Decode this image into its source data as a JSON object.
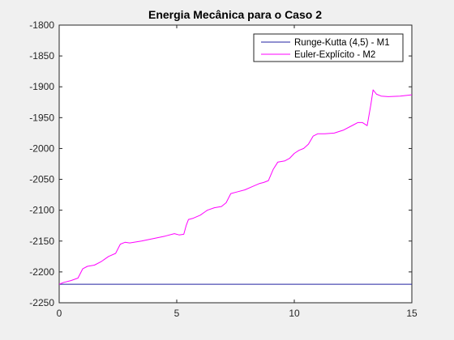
{
  "chart_data": {
    "type": "line",
    "title": "Energia Mecânica para o Caso 2",
    "xlabel": "",
    "ylabel": "",
    "xlim": [
      0,
      15
    ],
    "ylim": [
      -2250,
      -1800
    ],
    "xticks": [
      "0",
      "5",
      "10",
      "15"
    ],
    "yticks": [
      "-1800",
      "-1850",
      "-1900",
      "-1950",
      "-2000",
      "-2050",
      "-2100",
      "-2150",
      "-2200",
      "-2250"
    ],
    "grid": false,
    "legend_position": "top-right",
    "series": [
      {
        "name": "Runge-Kutta (4,5) - M1",
        "color": "#2020a0",
        "x": [
          0,
          15
        ],
        "y": [
          -2220,
          -2220
        ]
      },
      {
        "name": "Euler-Explícito - M2",
        "color": "#ff00ff",
        "x": [
          0,
          0.2,
          0.5,
          0.8,
          1.0,
          1.2,
          1.5,
          1.8,
          2.1,
          2.4,
          2.6,
          2.8,
          3.0,
          3.5,
          4.0,
          4.5,
          4.9,
          5.1,
          5.3,
          5.4,
          5.5,
          5.7,
          6.0,
          6.3,
          6.6,
          6.9,
          7.1,
          7.3,
          7.6,
          7.9,
          8.2,
          8.5,
          8.7,
          8.9,
          9.1,
          9.3,
          9.6,
          9.8,
          10.0,
          10.2,
          10.4,
          10.6,
          10.8,
          11.0,
          11.3,
          11.7,
          12.1,
          12.5,
          12.7,
          12.9,
          13.1,
          13.25,
          13.35,
          13.5,
          13.7,
          14.0,
          14.5,
          15.0
        ],
        "y": [
          -2220,
          -2217,
          -2214,
          -2210,
          -2195,
          -2191,
          -2189,
          -2183,
          -2175,
          -2170,
          -2155,
          -2152,
          -2153,
          -2150,
          -2146,
          -2142,
          -2138,
          -2140,
          -2139,
          -2125,
          -2115,
          -2113,
          -2108,
          -2100,
          -2096,
          -2094,
          -2088,
          -2073,
          -2070,
          -2067,
          -2062,
          -2057,
          -2055,
          -2052,
          -2034,
          -2022,
          -2020,
          -2016,
          -2008,
          -2003,
          -2000,
          -1993,
          -1980,
          -1976,
          -1976,
          -1975,
          -1970,
          -1962,
          -1958,
          -1958,
          -1963,
          -1930,
          -1905,
          -1912,
          -1915,
          -1916,
          -1915,
          -1913
        ]
      }
    ]
  }
}
